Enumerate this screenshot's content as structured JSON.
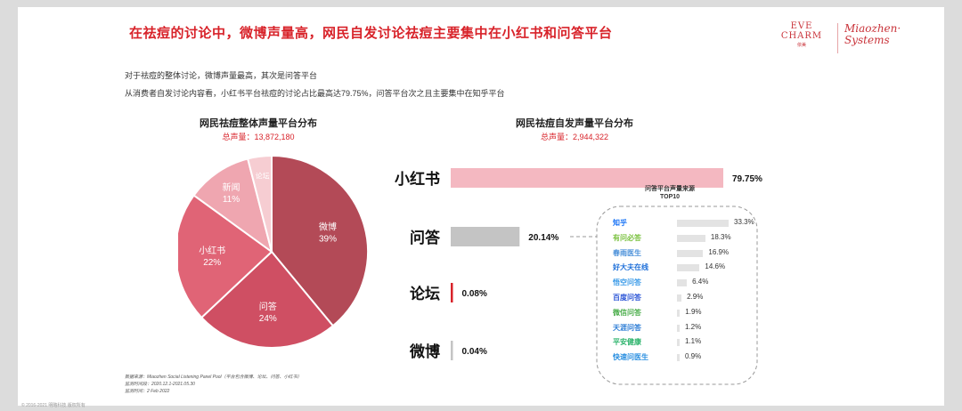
{
  "header": {
    "title": "在祛痘的讨论中，微博声量高，网民自发讨论祛痘主要集中在小红书和问答平台",
    "logo_eve_line1": "EVE",
    "logo_eve_line2": "CHARM",
    "logo_eve_small": "依美",
    "logo_mz_line1": "Miaozhen·",
    "logo_mz_line2": "Systems"
  },
  "intro": [
    "对于祛痘的整体讨论，微博声量最高，其次是问答平台",
    "从消费者自发讨论内容看，小红书平台祛痘的讨论占比最高达79.75%，问答平台次之且主要集中在知乎平台"
  ],
  "chart_data": [
    {
      "type": "pie",
      "title": "网民祛痘整体声量平台分布",
      "subtitle": "总声量：13,872,180",
      "slices": [
        {
          "name": "微博",
          "value": 39,
          "label": "39%",
          "color": "#b34a57"
        },
        {
          "name": "问答",
          "value": 24,
          "label": "24%",
          "color": "#cf4f63"
        },
        {
          "name": "小红书",
          "value": 22,
          "label": "22%",
          "color": "#e06476"
        },
        {
          "name": "新闻",
          "value": 11,
          "label": "11%",
          "color": "#efa6b0"
        },
        {
          "name": "论坛",
          "value": 4,
          "label": "",
          "color": "#f6cdd2"
        }
      ]
    },
    {
      "type": "bar",
      "orientation": "horizontal",
      "title": "网民祛痘自发声量平台分布",
      "subtitle": "总声量：2,944,322",
      "categories": [
        "小红书",
        "问答",
        "论坛",
        "微博"
      ],
      "values": [
        79.75,
        20.14,
        0.08,
        0.04
      ],
      "labels": [
        "79.75%",
        "20.14%",
        "0.08%",
        "0.04%"
      ],
      "colors": [
        "#f4b8c1",
        "#c4c4c4",
        "#d8232a",
        "#c4c4c4"
      ],
      "xlim": [
        0,
        100
      ]
    },
    {
      "type": "bar",
      "orientation": "horizontal",
      "title": "问答平台声量来源",
      "subtitle": "TOP10",
      "categories": [
        "知乎",
        "有问必答",
        "春雨医生",
        "好大夫在线",
        "悟空问答",
        "百度问答",
        "微信问答",
        "天涯问答",
        "平安健康",
        "快速问医生"
      ],
      "values": [
        33.3,
        18.3,
        16.9,
        14.6,
        6.4,
        2.9,
        1.9,
        1.2,
        1.1,
        0.9
      ],
      "labels": [
        "33.3%",
        "18.3%",
        "16.9%",
        "14.6%",
        "6.4%",
        "2.9%",
        "1.9%",
        "1.2%",
        "1.1%",
        "0.9%"
      ],
      "icon_colors": [
        "#1772f6",
        "#7cc242",
        "#4a90d9",
        "#1e6fd9",
        "#3c9be8",
        "#2b55d6",
        "#4cae4c",
        "#2a7bd5",
        "#2bb36b",
        "#2a8fe0"
      ],
      "xlim": [
        0,
        40
      ]
    }
  ],
  "notes": {
    "line1": "数据来源：Miaozhen Social Listening Panel Pool（平台包含微博、论坛、问答、小红书）",
    "line2": "监测时间段：2020.12.1-2021.05.30",
    "line3": "监测时间：2 Feb 2022"
  },
  "footer": "© 2016-2021 明略科技 版权所有"
}
